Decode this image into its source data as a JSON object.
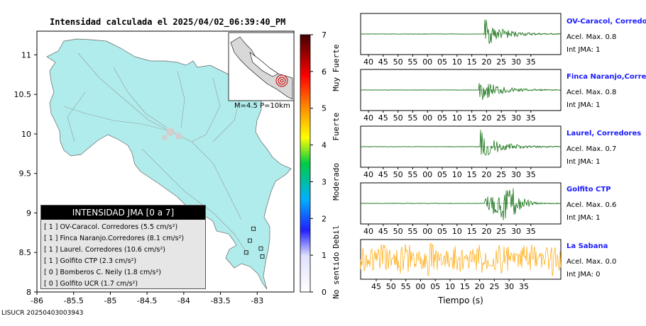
{
  "title": "Intensidad calculada el 2025/04/02_06:39:40_PM",
  "stamp": "LISUCR 20250403003943",
  "map": {
    "xticks": [
      "-86",
      "-85.5",
      "-85",
      "-84.5",
      "-84",
      "-83.5",
      "-83"
    ],
    "yticks": [
      "8",
      "8.5",
      "9",
      "9.5",
      "10",
      "10.5",
      "11"
    ],
    "inset_label": "M=4.5 P=10km",
    "land_color": "#b0ecec",
    "station_color": "#c0c0c0"
  },
  "legend": {
    "header": "INTENSIDAD JMA [0 a 7]",
    "entries": [
      "[ 1 ]  OV-Caracol. Corredores (5.5 cm/s²)",
      "[ 1 ]  Finca Naranjo.Corredores (8.1 cm/s²)",
      "[ 1 ]  Laurel. Corredores (10.6 cm/s²)",
      "[ 1 ]  Golfito CTP (2.3 cm/s²)",
      "[ 0 ]  Bomberos C. Neily (1.8 cm/s²)",
      "[ 0 ]  Golfito UCR (1.7 cm/s²)"
    ]
  },
  "colorbar": {
    "ticks": [
      "0",
      "1",
      "2",
      "3",
      "4",
      "5",
      "6",
      "7"
    ],
    "labels": [
      "No sentido",
      "Debil",
      "Moderado",
      "Fuerte",
      "Muy Fuerte"
    ]
  },
  "seismograms": {
    "xlabel": "Tiempo (s)",
    "ticks_a": [
      "40",
      "45",
      "50",
      "55",
      "00",
      "05",
      "10",
      "15",
      "20",
      "25",
      "30",
      "35"
    ],
    "ticks_b": [
      "45",
      "50",
      "55",
      "00",
      "05",
      "10",
      "15",
      "20",
      "25",
      "30",
      "35"
    ],
    "stations": [
      {
        "name": "OV-Caracol, Corredores",
        "acc": "Acel. Max. 0.8",
        "jma": "Int JMA: 1"
      },
      {
        "name": "Finca Naranjo,Corredores",
        "acc": "Acel. Max. 0.8",
        "jma": "Int JMA: 1"
      },
      {
        "name": "Laurel, Corredores",
        "acc": "Acel. Max. 0.7",
        "jma": "Int JMA: 1"
      },
      {
        "name": "Golfito CTP",
        "acc": "Acel. Max. 0.6",
        "jma": "Int JMA: 1"
      },
      {
        "name": "La Sabana",
        "acc": "Acel. Max. 0.0",
        "jma": "Int JMA: 0"
      }
    ]
  },
  "chart_data": [
    {
      "type": "heatmap",
      "title": "Intensidad calculada el 2025/04/02_06:39:40_PM",
      "xlim": [
        -86.0,
        -82.5
      ],
      "ylim": [
        8.0,
        11.3
      ],
      "colorbar_range": [
        0,
        7
      ],
      "stations": [
        {
          "name": "OV-Caracol. Corredores",
          "intensity": 1,
          "pga": 5.5,
          "unit": "cm/s²"
        },
        {
          "name": "Finca Naranjo.Corredores",
          "intensity": 1,
          "pga": 8.1,
          "unit": "cm/s²"
        },
        {
          "name": "Laurel. Corredores",
          "intensity": 1,
          "pga": 10.6,
          "unit": "cm/s²"
        },
        {
          "name": "Golfito CTP",
          "intensity": 1,
          "pga": 2.3,
          "unit": "cm/s²"
        },
        {
          "name": "Bomberos C. Neily",
          "intensity": 0,
          "pga": 1.8,
          "unit": "cm/s²"
        },
        {
          "name": "Golfito UCR",
          "intensity": 0,
          "pga": 1.7,
          "unit": "cm/s²"
        }
      ],
      "markers": [
        {
          "lon": -83.05,
          "lat": 8.8
        },
        {
          "lon": -82.95,
          "lat": 8.55
        },
        {
          "lon": -83.1,
          "lat": 8.65
        },
        {
          "lon": -83.15,
          "lat": 8.5
        },
        {
          "lon": -82.93,
          "lat": 8.45
        }
      ]
    },
    {
      "type": "line",
      "xlabel": "Tiempo (s)",
      "series": [
        {
          "name": "OV-Caracol, Corredores",
          "peak": 0.8,
          "onset": 14,
          "color": "#006400"
        },
        {
          "name": "Finca Naranjo,Corredores",
          "peak": 0.8,
          "onset": 14.5,
          "color": "#006400"
        },
        {
          "name": "Laurel, Corredores",
          "peak": 0.7,
          "onset": 14.5,
          "color": "#006400"
        },
        {
          "name": "Golfito CTP",
          "peak": 0.6,
          "onset": 15.5,
          "color": "#006400"
        },
        {
          "name": "La Sabana",
          "peak": 0.0,
          "color": "#ffa500"
        }
      ]
    }
  ]
}
